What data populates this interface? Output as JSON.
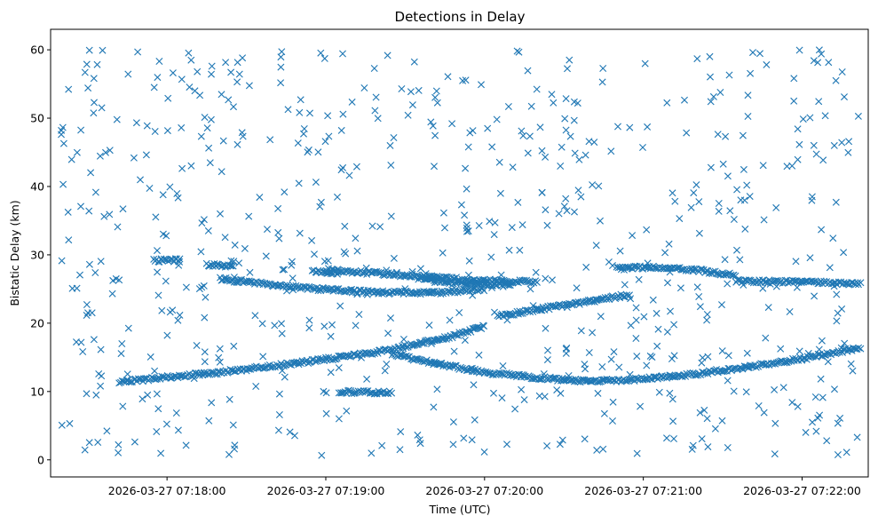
{
  "chart_data": {
    "type": "scatter",
    "title": "Detections in Delay",
    "xlabel": "Time (UTC)",
    "ylabel": "Bistatic Delay (km)",
    "x_type": "time",
    "xlim": [
      "2026-03-27 07:17:16",
      "2026-03-27 07:22:25"
    ],
    "ylim": [
      -2.5,
      63
    ],
    "x_ticks": [
      {
        "time": "2026-03-27 07:18:00",
        "label": "2026-03-27 07:18:00"
      },
      {
        "time": "2026-03-27 07:19:00",
        "label": "2026-03-27 07:19:00"
      },
      {
        "time": "2026-03-27 07:20:00",
        "label": "2026-03-27 07:20:00"
      },
      {
        "time": "2026-03-27 07:21:00",
        "label": "2026-03-27 07:21:00"
      },
      {
        "time": "2026-03-27 07:22:00",
        "label": "2026-03-27 07:22:00"
      }
    ],
    "y_ticks": [
      0,
      10,
      20,
      30,
      40,
      50,
      60
    ],
    "marker": "x",
    "grid": false,
    "series": [
      {
        "color": "#1f77b4",
        "tracks": [
          {
            "time": [
              "07:17:42",
              "07:18:20",
              "07:18:50",
              "07:19:20",
              "07:19:45",
              "07:20:00"
            ],
            "delay": [
              11.4,
              12.8,
              14.2,
              15.8,
              17.8,
              19.5
            ]
          },
          {
            "time": [
              "07:19:25",
              "07:19:40",
              "07:20:00",
              "07:20:15",
              "07:20:30",
              "07:20:40"
            ],
            "delay": [
              15.5,
              14.2,
              12.8,
              12.2,
              11.7,
              11.5
            ]
          },
          {
            "time": [
              "07:20:40",
              "07:21:00",
              "07:21:20",
              "07:21:40",
              "07:22:00",
              "07:22:22"
            ],
            "delay": [
              11.5,
              11.8,
              12.6,
              13.6,
              14.8,
              16.4
            ]
          },
          {
            "time": [
              "07:18:20",
              "07:18:40",
              "07:19:00",
              "07:19:20",
              "07:19:40",
              "07:20:00"
            ],
            "delay": [
              26.5,
              25.6,
              24.9,
              24.5,
              24.4,
              25.0
            ]
          },
          {
            "time": [
              "07:19:00",
              "07:19:30",
              "07:20:00",
              "07:20:20"
            ],
            "delay": [
              27.8,
              27.0,
              26.2,
              26.0
            ]
          },
          {
            "time": [
              "07:19:35",
              "07:19:45",
              "07:20:10"
            ],
            "delay": [
              26.6,
              26.0,
              25.5
            ]
          },
          {
            "time": [
              "07:20:05",
              "07:20:20",
              "07:20:40",
              "07:20:55"
            ],
            "delay": [
              21.0,
              22.0,
              23.2,
              24.2
            ]
          },
          {
            "time": [
              "07:20:50",
              "07:21:05",
              "07:21:20",
              "07:21:35"
            ],
            "delay": [
              28.0,
              28.2,
              27.8,
              27.0
            ]
          },
          {
            "time": [
              "07:21:35",
              "07:22:00",
              "07:22:22"
            ],
            "delay": [
              26.2,
              26.0,
              25.8
            ]
          },
          {
            "time": [
              "07:17:55",
              "07:18:05"
            ],
            "delay": [
              29.2,
              29.2
            ]
          },
          {
            "time": [
              "07:18:15",
              "07:18:25"
            ],
            "delay": [
              28.6,
              28.4
            ]
          },
          {
            "time": [
              "07:18:55",
              "07:19:05"
            ],
            "delay": [
              27.6,
              27.4
            ]
          },
          {
            "time": [
              "07:19:05",
              "07:19:25"
            ],
            "delay": [
              10.0,
              9.8
            ]
          }
        ],
        "scatter_region": {
          "x_range": [
            "07:17:20",
            "07:22:22"
          ],
          "y_range": [
            0.5,
            60
          ],
          "count": 700
        }
      }
    ]
  }
}
